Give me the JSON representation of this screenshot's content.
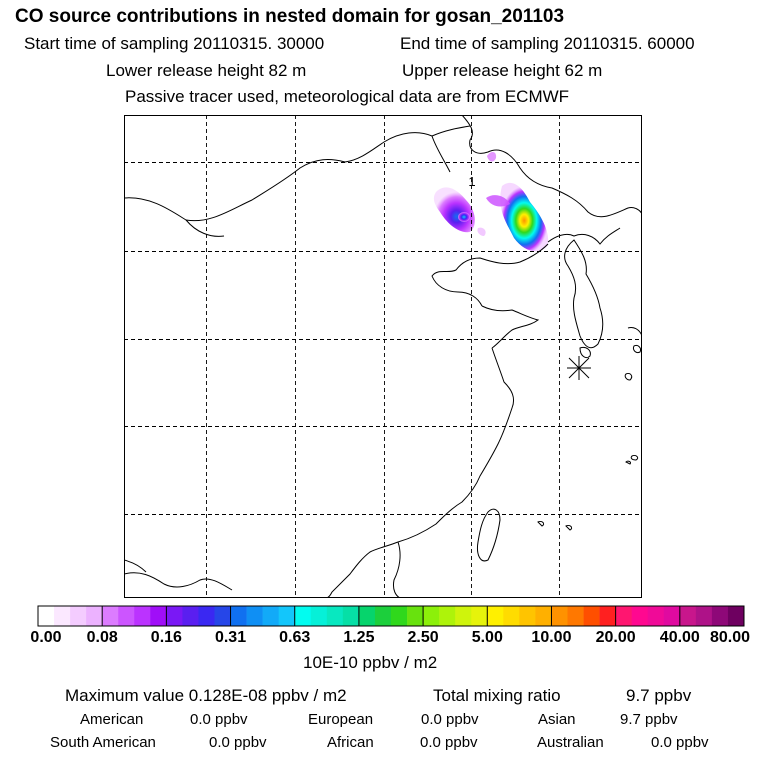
{
  "header": {
    "title": "CO  source contributions in nested domain for gosan_201103",
    "start_label": "Start time of sampling 20110315. 30000",
    "end_label": "End time of sampling 20110315. 60000",
    "lower_label": "Lower release height   82 m",
    "upper_label": "Upper release height   62 m",
    "note": "Passive tracer used, meteorological data are from ECMWF"
  },
  "map": {
    "region": "East Asia nested domain",
    "contour_label": "1",
    "receptor": "Gosan"
  },
  "colorbar": {
    "unit": "10E-10 ppbv / m2",
    "ticks": [
      "0.00",
      "0.08",
      "0.16",
      "0.31",
      "0.63",
      "1.25",
      "2.50",
      "5.00",
      "10.00",
      "20.00",
      "40.00",
      "80.00"
    ],
    "colors": [
      "#ffffff",
      "#fbe8ff",
      "#f4ccff",
      "#ecb2ff",
      "#dc7cff",
      "#cc55ff",
      "#bb33ff",
      "#a00ef8",
      "#7a18f5",
      "#5a1ff0",
      "#3a28f2",
      "#2646e8",
      "#1070f0",
      "#0f8ff4",
      "#12aaf8",
      "#13c6fb",
      "#02fcf0",
      "#06f0d8",
      "#08e8c0",
      "#06dfa6",
      "#06d46c",
      "#1ccf3c",
      "#30d81c",
      "#68e20e",
      "#8cf00a",
      "#aef30a",
      "#cff40c",
      "#e6f30b",
      "#fff000",
      "#ffdc00",
      "#ffc400",
      "#ffb000",
      "#ff9200",
      "#ff7800",
      "#ff4f00",
      "#ff2020",
      "#ff1670",
      "#ff0890",
      "#f00a98",
      "#e00aa0",
      "#c8168c",
      "#ae1288",
      "#8e0878",
      "#6e0060"
    ]
  },
  "summary": {
    "max_line": "Maximum value  0.128E-08 ppbv / m2",
    "total_line": "Total mixing ratio",
    "total_value": "9.7 ppbv",
    "row1": [
      {
        "name": "American",
        "value": "0.0 ppbv"
      },
      {
        "name": "European",
        "value": "0.0 ppbv"
      },
      {
        "name": "Asian",
        "value": "9.7 ppbv"
      }
    ],
    "row2": [
      {
        "name": "South American",
        "value": "0.0 ppbv"
      },
      {
        "name": "African",
        "value": "0.0 ppbv"
      },
      {
        "name": "Australian",
        "value": "0.0 ppbv"
      }
    ]
  }
}
